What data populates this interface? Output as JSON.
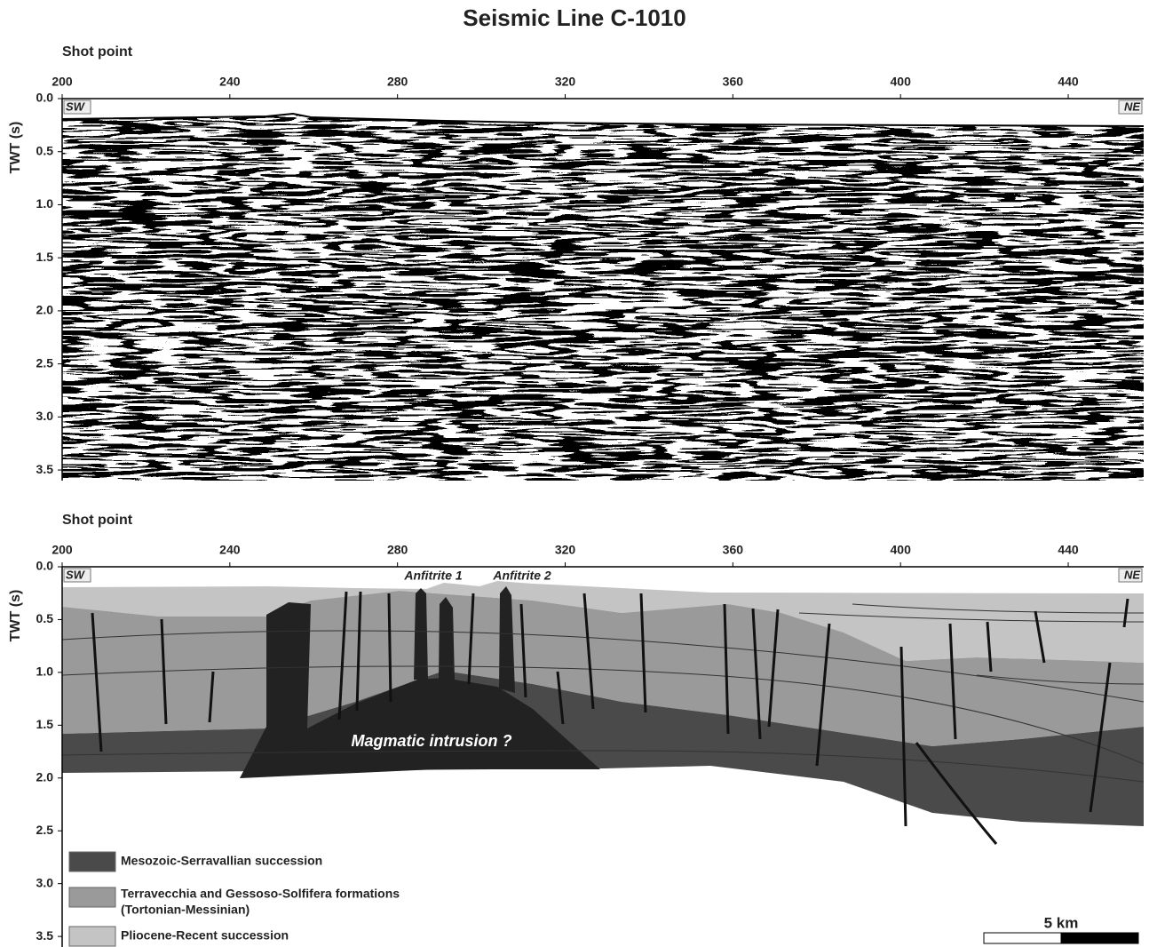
{
  "title": "Seismic Line C-1010",
  "panels": [
    {
      "x_label": "Shot point",
      "y_label": "TWT (s)",
      "xlim": [
        200,
        458
      ],
      "xticks": [
        200,
        240,
        280,
        320,
        360,
        400,
        440
      ],
      "ylim": [
        0,
        3.6
      ],
      "yticks": [
        {
          "value": 0,
          "label": "0.0"
        },
        0.5,
        {
          "value": 1,
          "label": "1.0"
        },
        1.5,
        {
          "value": 2,
          "label": "2.0"
        },
        2.5,
        {
          "value": 3,
          "label": "3.0"
        },
        3.5
      ],
      "left_label": "SW",
      "right_label": "NE"
    },
    {
      "x_label": "Shot point",
      "y_label": "TWT (s)",
      "xlim": [
        200,
        458
      ],
      "xticks": [
        200,
        240,
        280,
        320,
        360,
        400,
        440
      ],
      "ylim": [
        0,
        3.6
      ],
      "yticks": [
        {
          "value": 0,
          "label": "0.0"
        },
        0.5,
        {
          "value": 1,
          "label": "1.0"
        },
        1.5,
        {
          "value": 2,
          "label": "2.0"
        },
        2.5,
        {
          "value": 3,
          "label": "3.0"
        },
        3.5
      ],
      "left_label": "SW",
      "right_label": "NE",
      "annotations": [
        "Anfitrite 1",
        "Anfitrite 2",
        "Magmatic intrusion ?"
      ]
    }
  ],
  "legend": [
    {
      "label": "Mesozoic-Serravallian succession",
      "color": "#4a4a4a"
    },
    {
      "label": [
        "Terravecchia and Gessoso-Solfifera formations",
        "(Tortonian-Messinian)"
      ],
      "color": "#9a9a9a"
    },
    {
      "label": "Pliocene-Recent succession",
      "color": "#c4c4c4"
    }
  ],
  "scale_bar": "5 km"
}
